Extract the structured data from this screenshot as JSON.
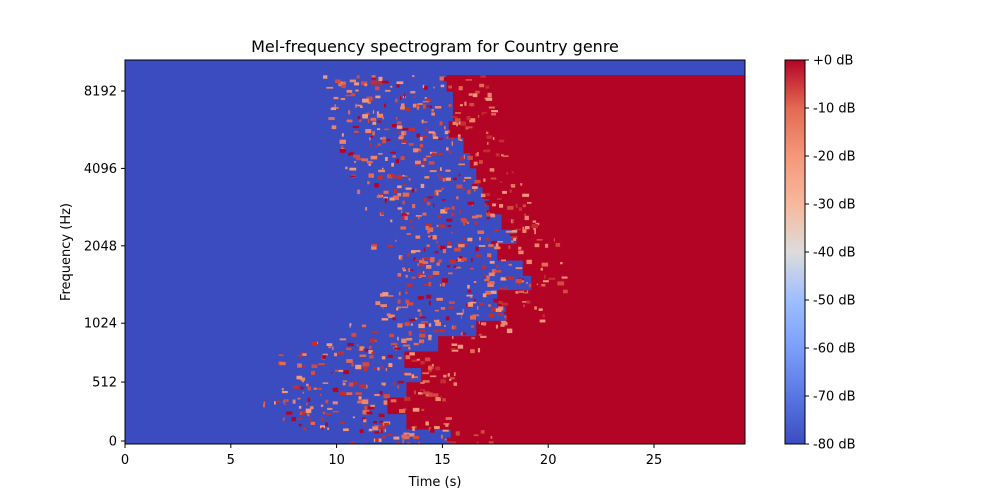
{
  "chart_data": {
    "type": "heatmap",
    "title": "Mel-frequency spectrogram for Country genre",
    "xlabel": "Time (s)",
    "ylabel": "Frequency (Hz)",
    "xlim": [
      0,
      29.3
    ],
    "x_ticks": [
      0,
      5,
      10,
      15,
      20,
      25
    ],
    "y_scale": "mel",
    "y_ticks": [
      0,
      512,
      1024,
      2048,
      4096,
      8192
    ],
    "colormap": "coolwarm",
    "colorbar": {
      "label_ticks": [
        "+0 dB",
        "-10 dB",
        "-20 dB",
        "-30 dB",
        "-40 dB",
        "-50 dB",
        "-60 dB",
        "-70 dB",
        "-80 dB"
      ],
      "range_db": [
        -80,
        0
      ]
    },
    "bands": [
      {
        "y": 0.94,
        "start_s": 15.2
      },
      {
        "y": 0.9,
        "start_s": 15.5
      },
      {
        "y": 0.86,
        "start_s": 15.5
      },
      {
        "y": 0.82,
        "start_s": 15.3
      },
      {
        "y": 0.78,
        "start_s": 16.0
      },
      {
        "y": 0.74,
        "start_s": 16.3
      },
      {
        "y": 0.7,
        "start_s": 16.6
      },
      {
        "y": 0.66,
        "start_s": 16.9
      },
      {
        "y": 0.62,
        "start_s": 17.2
      },
      {
        "y": 0.58,
        "start_s": 17.8
      },
      {
        "y": 0.54,
        "start_s": 18.5
      },
      {
        "y": 0.5,
        "start_s": 17.6
      },
      {
        "y": 0.46,
        "start_s": 18.8
      },
      {
        "y": 0.42,
        "start_s": 19.2
      },
      {
        "y": 0.38,
        "start_s": 17.6
      },
      {
        "y": 0.34,
        "start_s": 18.0
      },
      {
        "y": 0.3,
        "start_s": 16.6
      },
      {
        "y": 0.26,
        "start_s": 14.8
      },
      {
        "y": 0.22,
        "start_s": 13.2
      },
      {
        "y": 0.18,
        "start_s": 14.0
      },
      {
        "y": 0.14,
        "start_s": 13.3
      },
      {
        "y": 0.1,
        "start_s": 12.4
      },
      {
        "y": 0.06,
        "start_s": 13.3
      },
      {
        "y": 0.02,
        "start_s": 15.4
      }
    ]
  }
}
